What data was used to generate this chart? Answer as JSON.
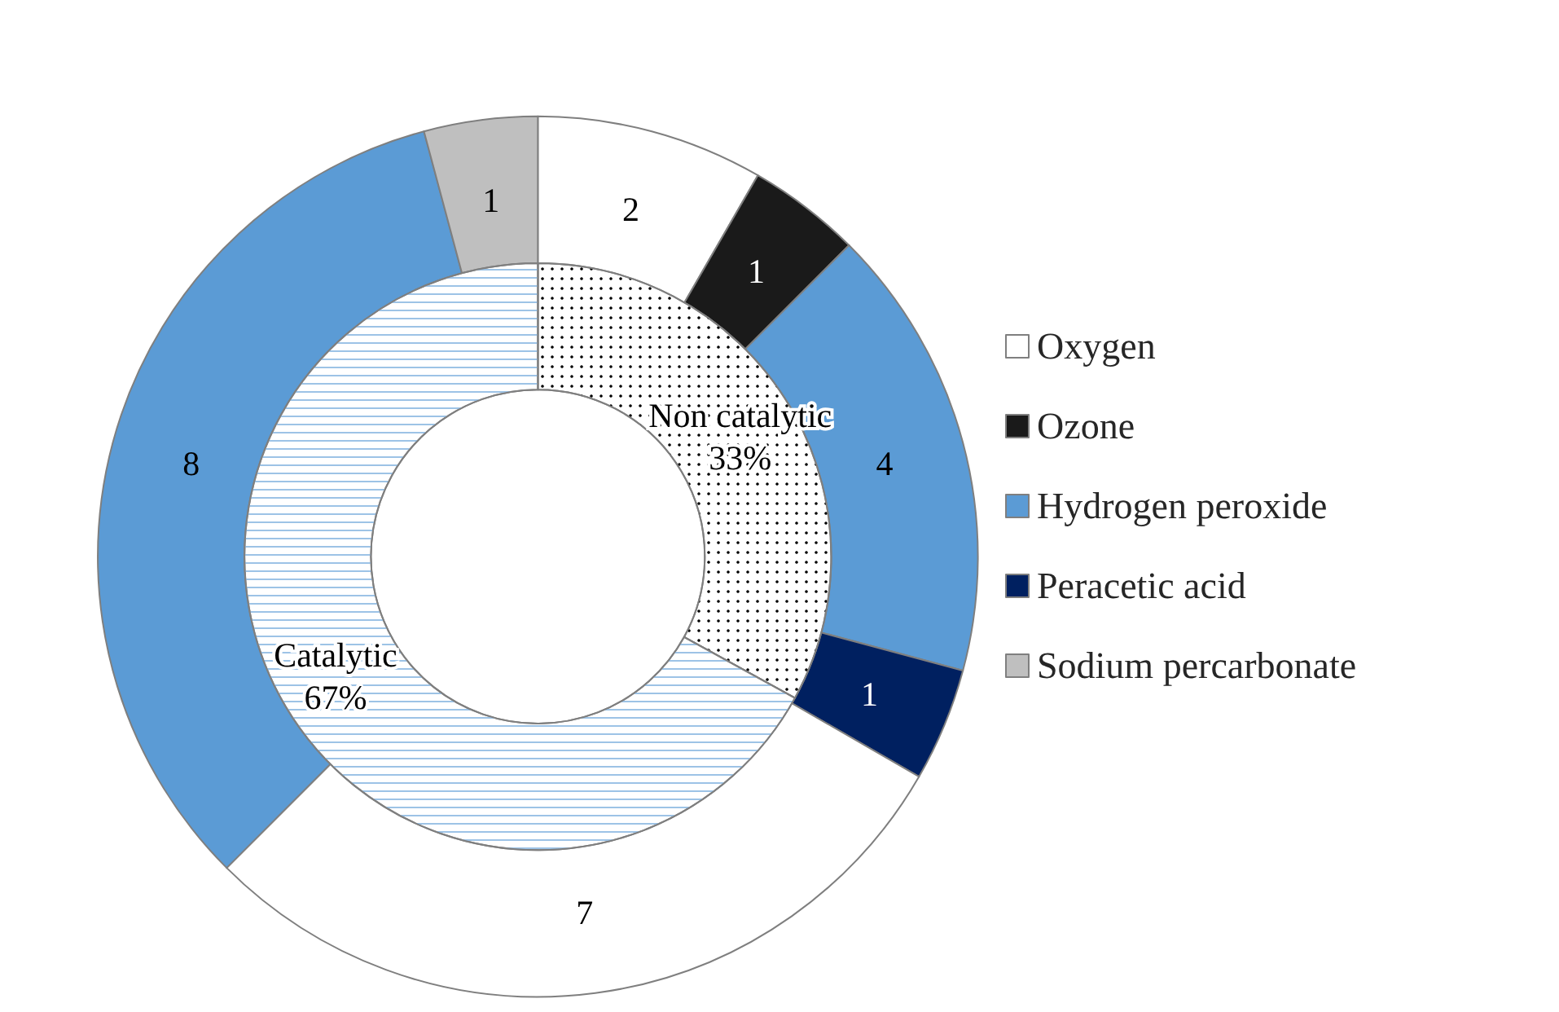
{
  "chart_data": [
    {
      "type": "donut",
      "legend": "right",
      "data_labels": true,
      "categories": [
        "Oxygen",
        "Ozone",
        "Hydrogen peroxide",
        "Peracetic acid",
        null,
        null,
        "Sodium percarbonate"
      ],
      "values": [
        2,
        1,
        4,
        1,
        7,
        8,
        1
      ],
      "colors": [
        "#ffffff",
        "#1a1a1a",
        "#5b9bd5",
        "#002060",
        "#ffffff",
        "#5b9bd5",
        "#bfbfbf"
      ]
    },
    {
      "type": "donut",
      "categories": [
        "Non catalytic",
        "Catalytic"
      ],
      "values": [
        33,
        67
      ],
      "value_labels": [
        "33%",
        "67%"
      ],
      "colors": [
        "#ffffff",
        "#ffffff"
      ]
    }
  ]
}
